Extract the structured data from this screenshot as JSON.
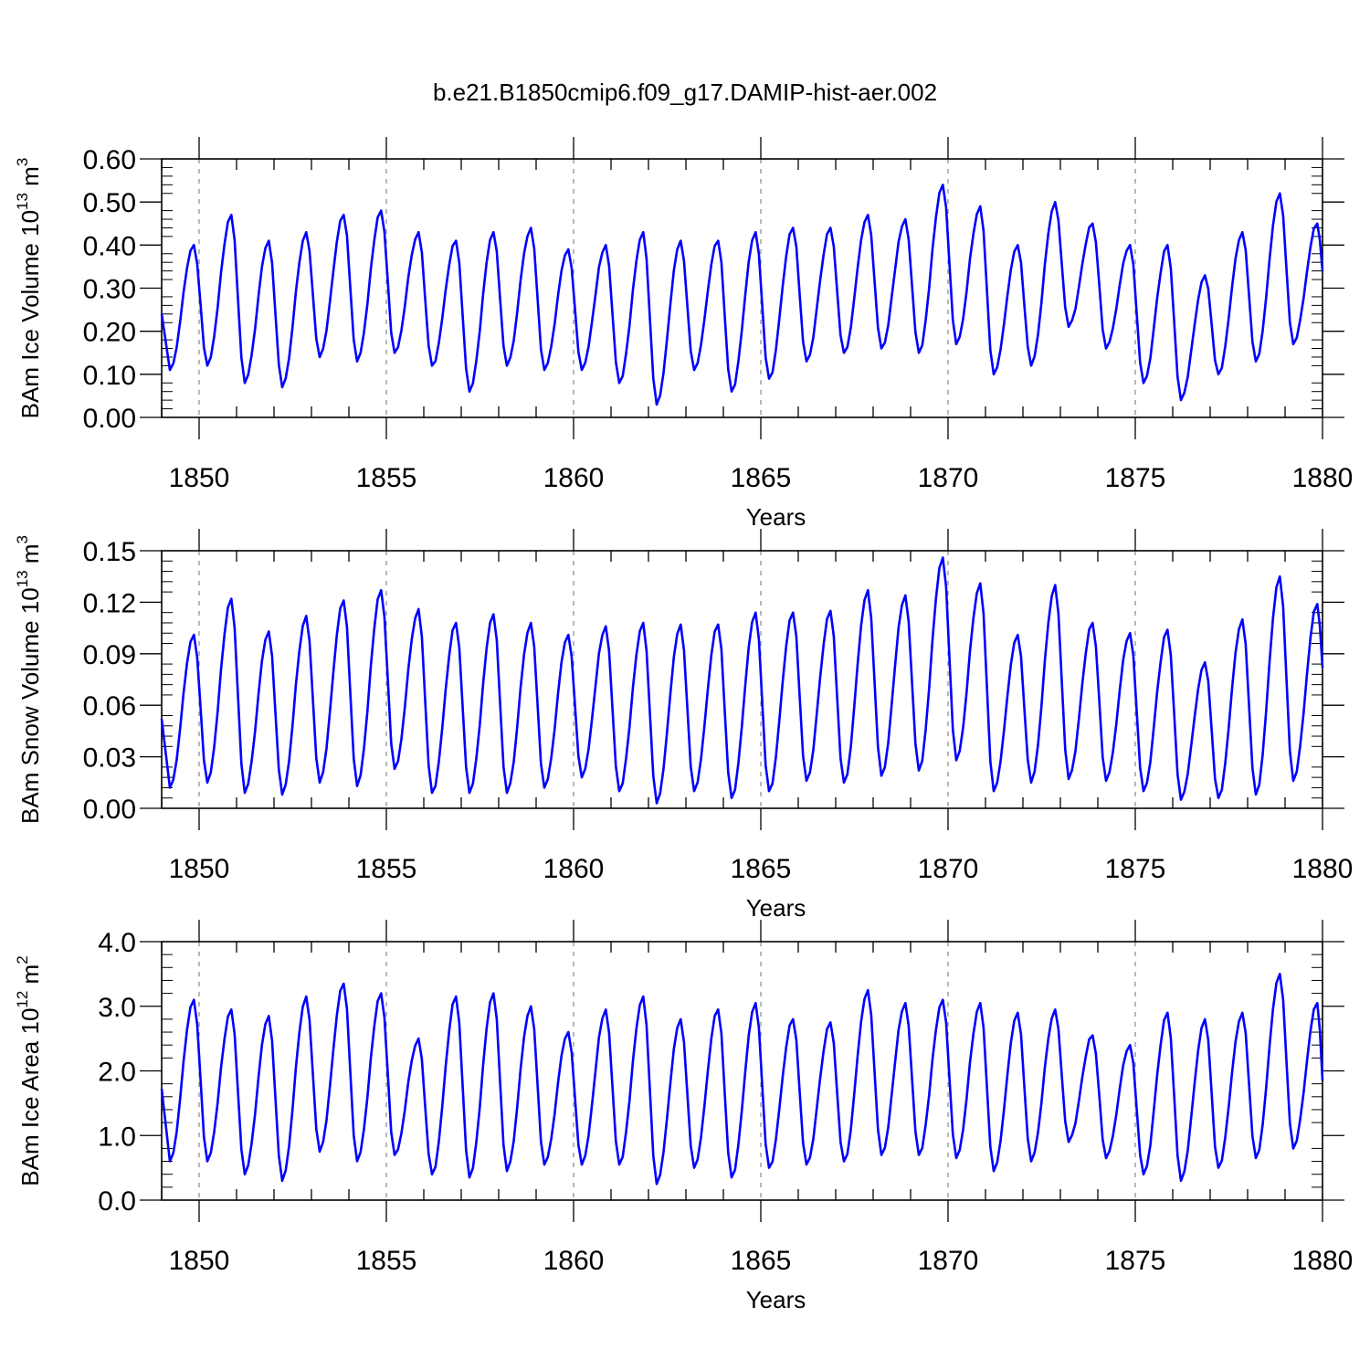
{
  "title": "b.e21.B1850cmip6.f09_g17.DAMIP-hist-aer.002",
  "series_color": "#0000ff",
  "chart_data": [
    {
      "type": "line",
      "name": "ice_volume",
      "ylabel": "BAm Ice Volume",
      "ylabel_unit_pre": "10",
      "ylabel_unit_exp": "13",
      "ylabel_unit_post": "m",
      "ylabel_unit_post_exp": "3",
      "xlabel": "Years",
      "xlim": [
        1849.0,
        1880.0
      ],
      "ylim": [
        0.0,
        0.6
      ],
      "xticks": [
        1850,
        1855,
        1860,
        1865,
        1870,
        1875,
        1880
      ],
      "xtick_labels": [
        "1850",
        "1855",
        "1860",
        "1865",
        "1870",
        "1875",
        "1880"
      ],
      "yticks": [
        0.0,
        0.1,
        0.2,
        0.3,
        0.4,
        0.5,
        0.6
      ],
      "ytick_labels": [
        "0.00",
        "0.10",
        "0.20",
        "0.30",
        "0.40",
        "0.50",
        "0.60"
      ],
      "year_start": 1849,
      "annual_max": [
        0.4,
        0.47,
        0.41,
        0.43,
        0.47,
        0.48,
        0.43,
        0.41,
        0.43,
        0.44,
        0.39,
        0.4,
        0.43,
        0.41,
        0.41,
        0.43,
        0.44,
        0.44,
        0.47,
        0.46,
        0.54,
        0.49,
        0.4,
        0.5,
        0.45,
        0.4,
        0.4,
        0.33,
        0.43,
        0.52,
        0.45
      ],
      "annual_min": [
        0.11,
        0.12,
        0.08,
        0.07,
        0.14,
        0.13,
        0.15,
        0.12,
        0.06,
        0.12,
        0.11,
        0.11,
        0.08,
        0.03,
        0.11,
        0.06,
        0.09,
        0.13,
        0.15,
        0.16,
        0.15,
        0.17,
        0.1,
        0.12,
        0.21,
        0.16,
        0.08,
        0.04,
        0.1,
        0.13,
        0.17
      ],
      "end_value": 0.34
    },
    {
      "type": "line",
      "name": "snow_volume",
      "ylabel": "BAm Snow Volume",
      "ylabel_unit_pre": "10",
      "ylabel_unit_exp": "13",
      "ylabel_unit_post": "m",
      "ylabel_unit_post_exp": "3",
      "xlabel": "Years",
      "xlim": [
        1849.0,
        1880.0
      ],
      "ylim": [
        0.0,
        0.15
      ],
      "xticks": [
        1850,
        1855,
        1860,
        1865,
        1870,
        1875,
        1880
      ],
      "xtick_labels": [
        "1850",
        "1855",
        "1860",
        "1865",
        "1870",
        "1875",
        "1880"
      ],
      "yticks": [
        0.0,
        0.03,
        0.06,
        0.09,
        0.12,
        0.15
      ],
      "ytick_labels": [
        "0.00",
        "0.03",
        "0.06",
        "0.09",
        "0.12",
        "0.15"
      ],
      "year_start": 1849,
      "annual_max": [
        0.101,
        0.122,
        0.103,
        0.112,
        0.121,
        0.127,
        0.116,
        0.108,
        0.113,
        0.108,
        0.101,
        0.106,
        0.108,
        0.107,
        0.107,
        0.114,
        0.114,
        0.115,
        0.127,
        0.124,
        0.146,
        0.131,
        0.101,
        0.13,
        0.108,
        0.102,
        0.104,
        0.085,
        0.11,
        0.135,
        0.119
      ],
      "annual_min": [
        0.012,
        0.015,
        0.009,
        0.008,
        0.015,
        0.013,
        0.023,
        0.009,
        0.009,
        0.009,
        0.012,
        0.018,
        0.01,
        0.003,
        0.01,
        0.006,
        0.01,
        0.016,
        0.015,
        0.019,
        0.022,
        0.028,
        0.01,
        0.015,
        0.017,
        0.016,
        0.01,
        0.005,
        0.006,
        0.008,
        0.016
      ],
      "end_value": 0.082
    },
    {
      "type": "line",
      "name": "ice_area",
      "ylabel": "BAm Ice Area",
      "ylabel_unit_pre": "10",
      "ylabel_unit_exp": "12",
      "ylabel_unit_post": "m",
      "ylabel_unit_post_exp": "2",
      "xlabel": "Years",
      "xlim": [
        1849.0,
        1880.0
      ],
      "ylim": [
        0.0,
        4.0
      ],
      "xticks": [
        1850,
        1855,
        1860,
        1865,
        1870,
        1875,
        1880
      ],
      "xtick_labels": [
        "1850",
        "1855",
        "1860",
        "1865",
        "1870",
        "1875",
        "1880"
      ],
      "yticks": [
        0.0,
        1.0,
        2.0,
        3.0,
        4.0
      ],
      "ytick_labels": [
        "0.0",
        "1.0",
        "2.0",
        "3.0",
        "4.0"
      ],
      "year_start": 1849,
      "annual_max": [
        3.1,
        2.95,
        2.85,
        3.15,
        3.35,
        3.2,
        2.5,
        3.15,
        3.2,
        3.0,
        2.6,
        2.95,
        3.15,
        2.8,
        2.95,
        3.05,
        2.8,
        2.75,
        3.25,
        3.05,
        3.1,
        3.05,
        2.9,
        2.95,
        2.55,
        2.4,
        2.9,
        2.8,
        2.9,
        3.5,
        3.05
      ],
      "annual_min": [
        0.6,
        0.6,
        0.4,
        0.3,
        0.75,
        0.6,
        0.7,
        0.4,
        0.35,
        0.45,
        0.55,
        0.55,
        0.55,
        0.25,
        0.5,
        0.35,
        0.5,
        0.55,
        0.6,
        0.7,
        0.7,
        0.65,
        0.45,
        0.6,
        0.9,
        0.65,
        0.4,
        0.3,
        0.5,
        0.65,
        0.8
      ],
      "end_value": 1.85
    }
  ]
}
